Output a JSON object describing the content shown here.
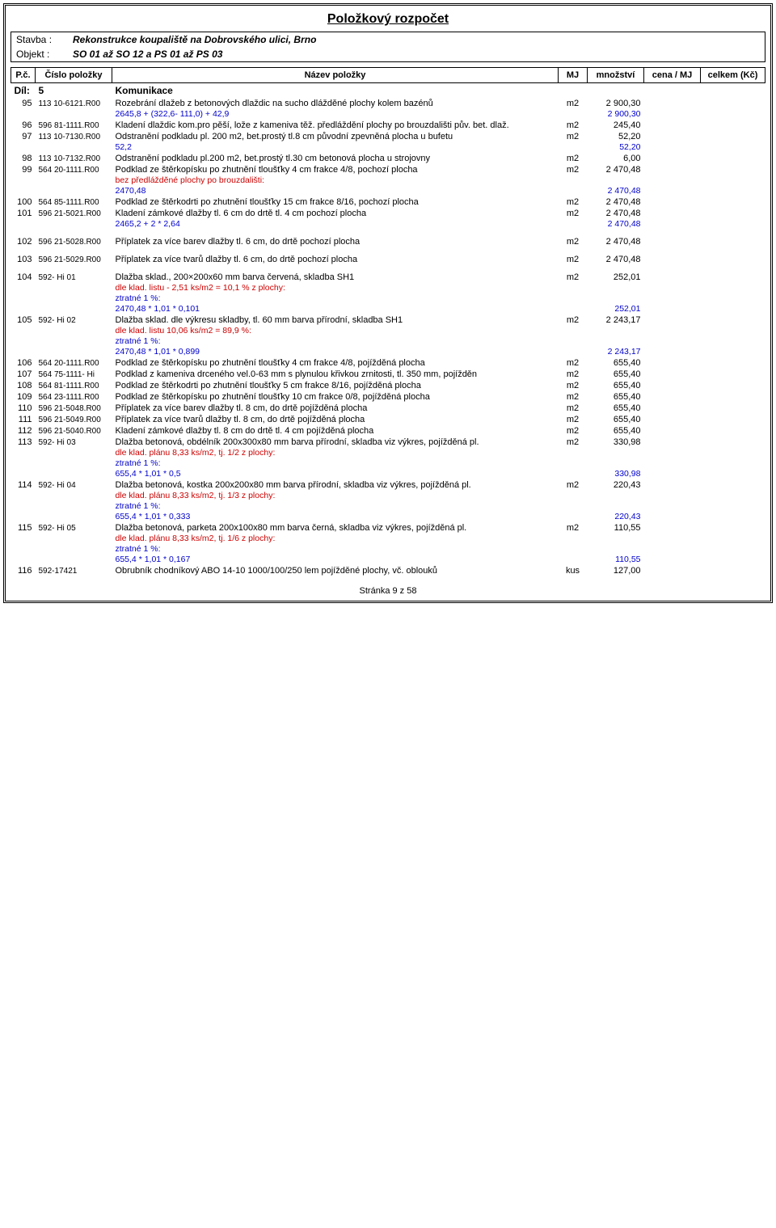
{
  "title": "Položkový rozpočet",
  "header": {
    "stavba_label": "Stavba :",
    "stavba_value": "Rekonstrukce koupaliště na Dobrovského ulici, Brno",
    "objekt_label": "Objekt :",
    "objekt_value": "SO 01 až SO 12 a PS 01 až PS 03"
  },
  "thead": {
    "pc": "P.č.",
    "code": "Číslo položky",
    "name": "Název položky",
    "mj": "MJ",
    "qty": "množství",
    "price": "cena / MJ",
    "total": "celkem (Kč)"
  },
  "dil": {
    "label": "Díl:",
    "num": "5",
    "name": "Komunikace"
  },
  "rows": [
    {
      "type": "item",
      "pc": "95",
      "code": "113 10-6121.R00",
      "name": "Rozebrání dlažeb z betonových dlaždic na sucho dlážděné plochy kolem bazénů",
      "mj": "m2",
      "qty": "2 900,30"
    },
    {
      "type": "sub",
      "name": "2645,8 + (322,6- 111,0) + 42,9",
      "qty": "2 900,30",
      "cls": "blue"
    },
    {
      "type": "item",
      "pc": "96",
      "code": "596 81-1111.R00",
      "name": "Kladení dlaždic kom.pro pěší, lože z kameniva těž. předláždění plochy po brouzdališti pův. bet. dlaž.",
      "mj": "m2",
      "qty": "245,40"
    },
    {
      "type": "item",
      "pc": "97",
      "code": "113 10-7130.R00",
      "name": "Odstranění podkladu pl. 200 m2, bet.prostý tl.8 cm původní zpevněná plocha u bufetu",
      "mj": "m2",
      "qty": "52,20"
    },
    {
      "type": "sub",
      "name": "52,2",
      "qty": "52,20",
      "cls": "blue"
    },
    {
      "type": "item",
      "pc": "98",
      "code": "113 10-7132.R00",
      "name": "Odstranění podkladu pl.200 m2, bet.prostý tl.30 cm betonová plocha u strojovny",
      "mj": "m2",
      "qty": "6,00"
    },
    {
      "type": "item",
      "pc": "99",
      "code": "564 20-1111.R00",
      "name": "Podklad ze štěrkopísku po zhutnění tloušťky 4 cm frakce 4/8, pochozí plocha",
      "mj": "m2",
      "qty": "2 470,48"
    },
    {
      "type": "sub",
      "name": "bez předlážděné plochy po brouzdališti:",
      "qty": "",
      "cls": "red"
    },
    {
      "type": "sub",
      "name": "2470,48",
      "qty": "2 470,48",
      "cls": "blue"
    },
    {
      "type": "item",
      "pc": "100",
      "code": "564 85-1111.R00",
      "name": "Podklad ze štěrkodrti po zhutnění tloušťky 15 cm frakce 8/16, pochozí plocha",
      "mj": "m2",
      "qty": "2 470,48"
    },
    {
      "type": "item",
      "pc": "101",
      "code": "596 21-5021.R00",
      "name": "Kladení zámkové dlažby tl. 6 cm do drtě tl. 4 cm pochozí plocha",
      "mj": "m2",
      "qty": "2 470,48"
    },
    {
      "type": "sub",
      "name": "2465,2 + 2 * 2,64",
      "qty": "2 470,48",
      "cls": "blue"
    },
    {
      "type": "spacer"
    },
    {
      "type": "item",
      "pc": "102",
      "code": "596 21-5028.R00",
      "name": "Příplatek za více barev dlažby tl. 6 cm, do drtě pochozí plocha",
      "mj": "m2",
      "qty": "2 470,48"
    },
    {
      "type": "spacer"
    },
    {
      "type": "item",
      "pc": "103",
      "code": "596 21-5029.R00",
      "name": "Příplatek za více tvarů dlažby tl. 6 cm, do drtě pochozí plocha",
      "mj": "m2",
      "qty": "2 470,48"
    },
    {
      "type": "spacer"
    },
    {
      "type": "item",
      "pc": "104",
      "code": "592- Hi 01",
      "name": "Dlažba sklad., 200×200x60 mm barva červená, skladba SH1",
      "mj": "m2",
      "qty": "252,01"
    },
    {
      "type": "sub",
      "name": "dle klad. listu - 2,51 ks/m2 = 10,1 % z plochy:",
      "qty": "",
      "cls": "red"
    },
    {
      "type": "sub",
      "name": "ztratné 1 %:",
      "qty": "",
      "cls": "blue"
    },
    {
      "type": "sub",
      "name": "2470,48 * 1,01 * 0,101",
      "qty": "252,01",
      "cls": "blue"
    },
    {
      "type": "item",
      "pc": "105",
      "code": "592- Hi 02",
      "name": "Dlažba sklad. dle výkresu skladby, tl. 60 mm barva přírodní, skladba SH1",
      "mj": "m2",
      "qty": "2 243,17"
    },
    {
      "type": "sub",
      "name": "dle klad. listu 10,06 ks/m2 = 89,9 %:",
      "qty": "",
      "cls": "red"
    },
    {
      "type": "sub",
      "name": "ztratné 1 %:",
      "qty": "",
      "cls": "blue"
    },
    {
      "type": "sub",
      "name": "2470,48 * 1,01 * 0,899",
      "qty": "2 243,17",
      "cls": "blue"
    },
    {
      "type": "item",
      "pc": "106",
      "code": "564 20-1111.R00",
      "name": "Podklad ze štěrkopísku po zhutnění tloušťky 4 cm frakce 4/8, pojížděná plocha",
      "mj": "m2",
      "qty": "655,40"
    },
    {
      "type": "item",
      "pc": "107",
      "code": "564 75-1111- Hi",
      "name": "Podklad z kameniva drceného vel.0-63 mm s plynulou křivkou zrnitosti, tl. 350 mm, pojížděn",
      "mj": "m2",
      "qty": "655,40"
    },
    {
      "type": "item",
      "pc": "108",
      "code": "564 81-1111.R00",
      "name": "Podklad ze štěrkodrti po zhutnění tloušťky 5 cm frakce 8/16, pojížděná plocha",
      "mj": "m2",
      "qty": "655,40"
    },
    {
      "type": "item",
      "pc": "109",
      "code": "564 23-1111.R00",
      "name": "Podklad ze štěrkopísku po zhutnění tloušťky 10 cm frakce 0/8, pojížděná plocha",
      "mj": "m2",
      "qty": "655,40"
    },
    {
      "type": "item",
      "pc": "110",
      "code": "596 21-5048.R00",
      "name": "Příplatek za více barev dlažby tl. 8 cm, do drtě pojížděná plocha",
      "mj": "m2",
      "qty": "655,40"
    },
    {
      "type": "item",
      "pc": "111",
      "code": "596 21-5049.R00",
      "name": "Příplatek za více tvarů dlažby tl. 8 cm, do drtě pojížděná plocha",
      "mj": "m2",
      "qty": "655,40"
    },
    {
      "type": "item",
      "pc": "112",
      "code": "596 21-5040.R00",
      "name": "Kladení zámkové dlažby tl. 8 cm do drtě tl. 4 cm pojížděná plocha",
      "mj": "m2",
      "qty": "655,40"
    },
    {
      "type": "item",
      "pc": "113",
      "code": "592- Hi 03",
      "name": "Dlažba betonová, obdélník 200x300x80 mm barva přírodní, skladba viz výkres, pojížděná pl.",
      "mj": "m2",
      "qty": "330,98"
    },
    {
      "type": "sub",
      "name": "dle klad. plánu 8,33 ks/m2, tj. 1/2 z plochy:",
      "qty": "",
      "cls": "red"
    },
    {
      "type": "sub",
      "name": "ztratné 1 %:",
      "qty": "",
      "cls": "blue"
    },
    {
      "type": "sub",
      "name": "655,4 * 1,01 * 0,5",
      "qty": "330,98",
      "cls": "blue"
    },
    {
      "type": "item",
      "pc": "114",
      "code": "592- Hi 04",
      "name": "Dlažba betonová, kostka 200x200x80 mm barva přírodní, skladba viz výkres, pojížděná pl.",
      "mj": "m2",
      "qty": "220,43"
    },
    {
      "type": "sub",
      "name": "dle klad. plánu 8,33 ks/m2, tj. 1/3 z plochy:",
      "qty": "",
      "cls": "red"
    },
    {
      "type": "sub",
      "name": "ztratné 1 %:",
      "qty": "",
      "cls": "blue"
    },
    {
      "type": "sub",
      "name": "655,4 * 1,01 * 0,333",
      "qty": "220,43",
      "cls": "blue"
    },
    {
      "type": "item",
      "pc": "115",
      "code": "592- Hi 05",
      "name": "Dlažba betonová, parketa 200x100x80 mm barva černá, skladba viz výkres, pojížděná pl.",
      "mj": "m2",
      "qty": "110,55"
    },
    {
      "type": "sub",
      "name": "dle klad. plánu 8,33 ks/m2, tj. 1/6 z plochy:",
      "qty": "",
      "cls": "red"
    },
    {
      "type": "sub",
      "name": "ztratné 1 %:",
      "qty": "",
      "cls": "blue"
    },
    {
      "type": "sub",
      "name": "655,4 * 1,01 * 0,167",
      "qty": "110,55",
      "cls": "blue"
    },
    {
      "type": "item",
      "pc": "116",
      "code": "592-17421",
      "name": "Obrubník chodníkový ABO 14-10 1000/100/250 lem pojížděné plochy, vč. oblouků",
      "mj": "kus",
      "qty": "127,00"
    }
  ],
  "footer": "Stránka 9 z 58"
}
